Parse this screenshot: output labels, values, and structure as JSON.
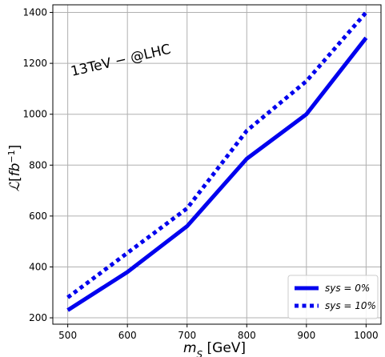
{
  "chart_data": {
    "type": "line",
    "x": [
      500,
      600,
      700,
      800,
      900,
      1000
    ],
    "series": [
      {
        "name": "sys = 0%",
        "values": [
          230,
          380,
          560,
          825,
          1000,
          1300
        ],
        "color": "#0000ee",
        "style": "solid"
      },
      {
        "name": "sys = 10%",
        "values": [
          280,
          455,
          630,
          935,
          1130,
          1400
        ],
        "color": "#0000ee",
        "style": "dotted"
      }
    ],
    "xlabel": "m_S [GeV]",
    "ylabel": "ℒ[fb⁻¹]",
    "xlim": [
      475,
      1025
    ],
    "ylim": [
      175,
      1430
    ],
    "xticks": [
      "500",
      "600",
      "700",
      "800",
      "900",
      "1000"
    ],
    "yticks": [
      "200",
      "400",
      "600",
      "800",
      "1000",
      "1200",
      "1400"
    ],
    "annotation": "13TeV − @LHC",
    "grid": true,
    "legend_position": "lower-right"
  }
}
